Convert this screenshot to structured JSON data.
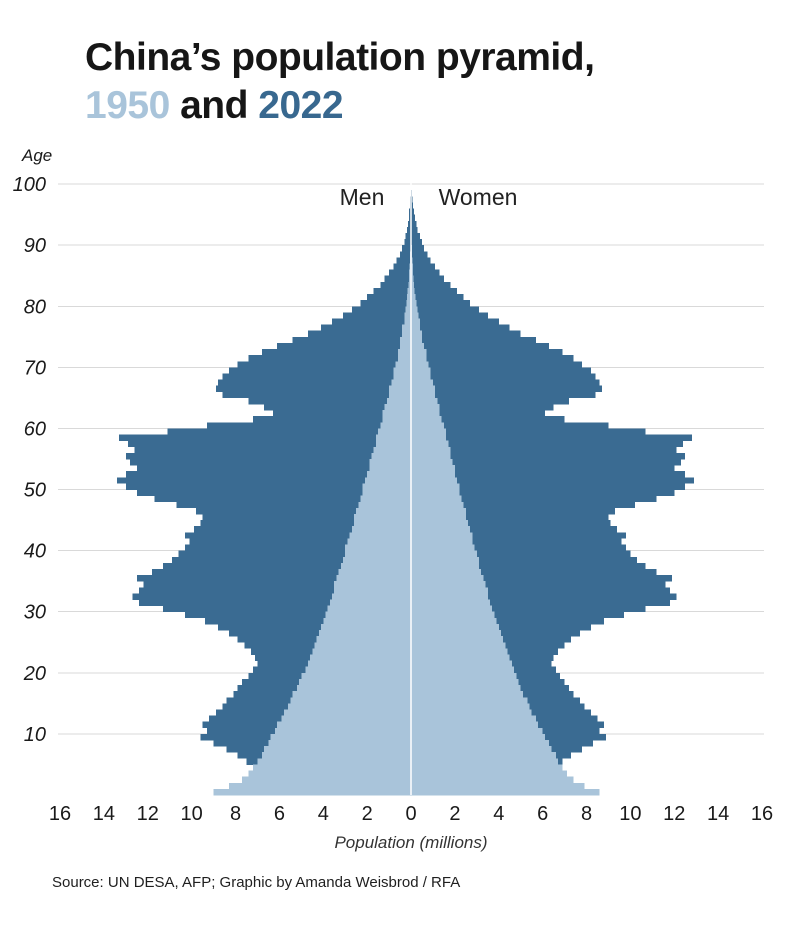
{
  "title": {
    "line1": "China’s population pyramid,",
    "year1": "1950",
    "conjunction": "and",
    "year2": "2022"
  },
  "axis": {
    "age_label": "Age",
    "men_label": "Men",
    "women_label": "Women",
    "x_label": "Population (millions)"
  },
  "source": "Source: UN DESA, AFP; Graphic by Amanda Weisbrod / RFA",
  "colors": {
    "color_1950": "#a9c4da",
    "color_2022": "#3a6b92",
    "grid": "#d9d9d9",
    "center_line": "#ffffff",
    "text": "#1a1a1a"
  },
  "chart_data": {
    "type": "bar",
    "subtype": "population-pyramid",
    "title": "China's population pyramid, 1950 and 2022",
    "xlabel": "Population (millions)",
    "ylabel": "Age",
    "age_range": [
      0,
      100
    ],
    "xlim_millions": 16,
    "x_ticks": [
      16,
      14,
      12,
      10,
      8,
      6,
      4,
      2,
      0,
      2,
      4,
      6,
      8,
      10,
      12,
      14,
      16
    ],
    "y_ticks": [
      10,
      20,
      30,
      40,
      50,
      60,
      70,
      80,
      90,
      100
    ],
    "grid": true,
    "legend_position": "in-chart-top (Men left, Women right)",
    "series": [
      {
        "name": "2022 Men",
        "year": 2022,
        "side": "left",
        "color": "#3a6b92",
        "values": [
          4.3,
          4.5,
          4.9,
          5.3,
          6.9,
          7.5,
          7.9,
          8.4,
          9.0,
          9.6,
          9.3,
          9.5,
          9.2,
          8.9,
          8.6,
          8.4,
          8.1,
          7.9,
          7.7,
          7.4,
          7.2,
          7.0,
          7.1,
          7.3,
          7.6,
          7.9,
          8.3,
          8.8,
          9.4,
          10.3,
          11.3,
          12.4,
          12.7,
          12.4,
          12.2,
          12.5,
          11.8,
          11.3,
          10.9,
          10.6,
          10.3,
          10.1,
          10.3,
          9.9,
          9.6,
          9.5,
          9.8,
          10.7,
          11.7,
          12.5,
          13.0,
          13.4,
          13.0,
          12.5,
          12.8,
          13.0,
          12.6,
          12.9,
          13.3,
          11.1,
          9.3,
          7.2,
          6.3,
          6.7,
          7.4,
          8.6,
          8.9,
          8.8,
          8.6,
          8.3,
          7.9,
          7.4,
          6.8,
          6.1,
          5.4,
          4.7,
          4.1,
          3.6,
          3.1,
          2.7,
          2.3,
          2.0,
          1.7,
          1.4,
          1.2,
          1.0,
          0.8,
          0.65,
          0.5,
          0.4,
          0.3,
          0.24,
          0.18,
          0.14,
          0.1,
          0.08,
          0.05,
          0.04,
          0.02,
          0.015,
          0.01
        ]
      },
      {
        "name": "2022 Women",
        "year": 2022,
        "side": "right",
        "color": "#3a6b92",
        "values": [
          3.9,
          4.1,
          4.5,
          4.9,
          6.3,
          6.9,
          7.3,
          7.8,
          8.3,
          8.9,
          8.6,
          8.8,
          8.5,
          8.2,
          7.9,
          7.7,
          7.4,
          7.2,
          7.0,
          6.8,
          6.6,
          6.4,
          6.5,
          6.7,
          7.0,
          7.3,
          7.7,
          8.2,
          8.8,
          9.7,
          10.7,
          11.8,
          12.1,
          11.8,
          11.6,
          11.9,
          11.2,
          10.7,
          10.3,
          10.0,
          9.8,
          9.6,
          9.8,
          9.4,
          9.1,
          9.0,
          9.3,
          10.2,
          11.2,
          12.0,
          12.5,
          12.9,
          12.5,
          12.0,
          12.3,
          12.5,
          12.1,
          12.4,
          12.8,
          10.7,
          9.0,
          7.0,
          6.1,
          6.5,
          7.2,
          8.4,
          8.7,
          8.6,
          8.4,
          8.2,
          7.8,
          7.4,
          6.9,
          6.3,
          5.7,
          5.0,
          4.5,
          4.0,
          3.5,
          3.1,
          2.7,
          2.4,
          2.1,
          1.8,
          1.5,
          1.3,
          1.1,
          0.9,
          0.75,
          0.6,
          0.5,
          0.4,
          0.3,
          0.24,
          0.18,
          0.13,
          0.1,
          0.07,
          0.05,
          0.03,
          0.02
        ]
      },
      {
        "name": "1950 Men",
        "year": 1950,
        "side": "left",
        "color": "#a9c4da",
        "values": [
          9.0,
          8.3,
          7.7,
          7.4,
          7.2,
          7.0,
          6.8,
          6.7,
          6.5,
          6.4,
          6.2,
          6.1,
          5.9,
          5.8,
          5.6,
          5.5,
          5.4,
          5.2,
          5.1,
          5.0,
          4.8,
          4.7,
          4.6,
          4.5,
          4.4,
          4.3,
          4.2,
          4.1,
          4.0,
          3.9,
          3.8,
          3.7,
          3.6,
          3.5,
          3.5,
          3.4,
          3.3,
          3.2,
          3.1,
          3.0,
          3.0,
          2.9,
          2.8,
          2.7,
          2.6,
          2.6,
          2.5,
          2.4,
          2.3,
          2.2,
          2.2,
          2.1,
          2.0,
          1.9,
          1.9,
          1.8,
          1.7,
          1.6,
          1.6,
          1.5,
          1.4,
          1.3,
          1.3,
          1.2,
          1.1,
          1.0,
          1.0,
          0.9,
          0.8,
          0.8,
          0.7,
          0.6,
          0.6,
          0.5,
          0.5,
          0.4,
          0.4,
          0.3,
          0.3,
          0.25,
          0.2,
          0.18,
          0.15,
          0.12,
          0.1,
          0.08,
          0.06,
          0.05,
          0.04,
          0.03,
          0.02,
          0.015,
          0.01,
          0.008,
          0.006,
          0.004,
          0.003,
          0.002,
          0.001,
          0.001,
          0
        ]
      },
      {
        "name": "1950 Women",
        "year": 1950,
        "side": "right",
        "color": "#a9c4da",
        "values": [
          8.6,
          7.9,
          7.4,
          7.1,
          6.9,
          6.7,
          6.6,
          6.4,
          6.3,
          6.1,
          6.0,
          5.8,
          5.7,
          5.5,
          5.4,
          5.3,
          5.1,
          5.0,
          4.9,
          4.8,
          4.7,
          4.6,
          4.5,
          4.4,
          4.3,
          4.2,
          4.1,
          4.0,
          3.9,
          3.8,
          3.7,
          3.6,
          3.5,
          3.5,
          3.4,
          3.3,
          3.2,
          3.1,
          3.1,
          3.0,
          2.9,
          2.8,
          2.8,
          2.7,
          2.6,
          2.5,
          2.5,
          2.4,
          2.3,
          2.2,
          2.2,
          2.1,
          2.0,
          2.0,
          1.9,
          1.8,
          1.8,
          1.7,
          1.6,
          1.6,
          1.5,
          1.4,
          1.3,
          1.3,
          1.2,
          1.1,
          1.1,
          1.0,
          0.9,
          0.9,
          0.8,
          0.7,
          0.7,
          0.6,
          0.5,
          0.5,
          0.4,
          0.4,
          0.35,
          0.3,
          0.25,
          0.2,
          0.17,
          0.14,
          0.12,
          0.1,
          0.08,
          0.06,
          0.05,
          0.04,
          0.03,
          0.02,
          0.015,
          0.01,
          0.008,
          0.005,
          0.004,
          0.003,
          0.002,
          0.001,
          0
        ]
      }
    ]
  }
}
